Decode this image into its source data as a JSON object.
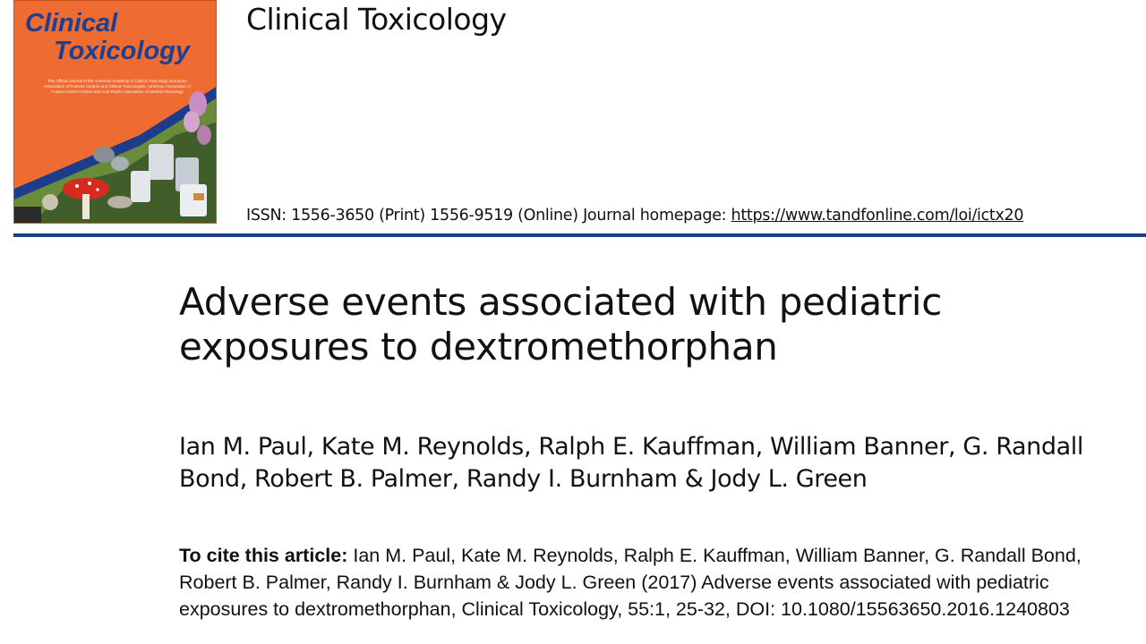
{
  "cover": {
    "title_line1": "Clinical",
    "title_line2": "Toxicology",
    "description": "The Official Journal of the American Academy of Clinical Toxicology, European Association of Poisons Centres and Clinical Toxicologists, American Association of Poison Control Centers and Asia Pacific Association of Medical Toxicology",
    "colors": {
      "background": "#ee6b32",
      "title": "#1f3f8f",
      "band": "#1c3c8c"
    }
  },
  "header": {
    "journal_name": "Clinical Toxicology",
    "issn_text": "ISSN: 1556-3650 (Print) 1556-9519 (Online) Journal homepage: ",
    "homepage_url": "https://www.tandfonline.com/loi/ictx20",
    "rule_color": "#1c3c8c"
  },
  "article": {
    "title": "Adverse events associated with pediatric exposures to dextromethorphan",
    "authors": "Ian M. Paul, Kate M. Reynolds, Ralph E. Kauffman, William Banner, G. Randall Bond, Robert B. Palmer, Randy I. Burnham & Jody L. Green"
  },
  "citation": {
    "label": "To cite this article:",
    "text": " Ian M. Paul, Kate M. Reynolds, Ralph E. Kauffman, William Banner, G. Randall Bond, Robert B. Palmer, Randy I. Burnham & Jody L. Green (2017) Adverse events associated with pediatric exposures to dextromethorphan, Clinical Toxicology, 55:1, 25-32, DOI: 10.1080/15563650.2016.1240803"
  }
}
